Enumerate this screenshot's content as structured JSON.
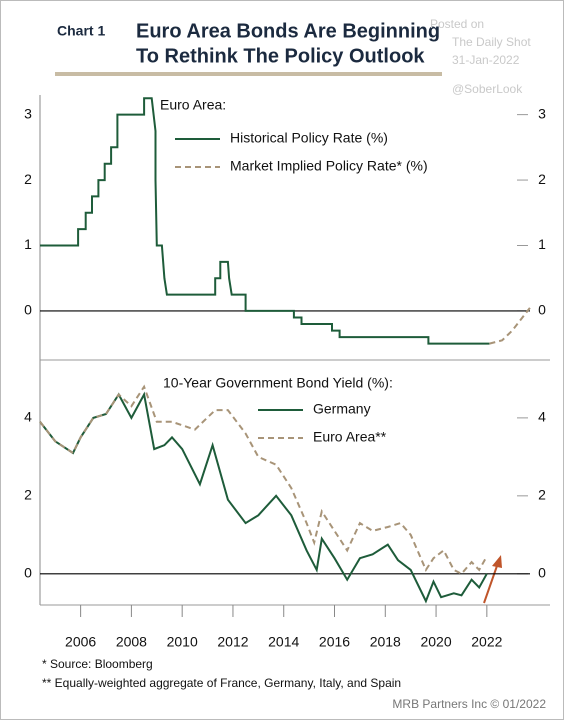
{
  "header": {
    "chart_label": "Chart 1",
    "title": [
      "Euro Area Bonds Are Beginning",
      "To Rethink The Policy Outlook"
    ]
  },
  "watermark": [
    "Posted on",
    "The Daily Shot",
    "31-Jan-2022",
    "@SoberLook"
  ],
  "chart_data": [
    {
      "type": "line",
      "title": "Euro Area:",
      "xlim": [
        2004.4,
        2023.7
      ],
      "ylim": [
        -0.75,
        3.3
      ],
      "yticks": [
        0,
        1,
        2,
        3
      ],
      "series": [
        {
          "name": "Historical Policy Rate (%)",
          "color": "#1e5c3a",
          "style": "solid",
          "x": [
            2004.4,
            2005.9,
            2005.9,
            2006.2,
            2006.2,
            2006.45,
            2006.45,
            2006.7,
            2006.7,
            2006.95,
            2006.95,
            2007.2,
            2007.2,
            2007.45,
            2007.45,
            2008.5,
            2008.5,
            2008.8,
            2008.95,
            2008.95,
            2009.0,
            2009.2,
            2009.3,
            2009.4,
            2011.3,
            2011.3,
            2011.5,
            2011.5,
            2011.8,
            2011.85,
            2011.95,
            2012.5,
            2012.5,
            2014.4,
            2014.4,
            2014.7,
            2014.7,
            2015.9,
            2015.9,
            2016.2,
            2016.2,
            2019.7,
            2019.7,
            2022.1
          ],
          "values": [
            1,
            1,
            1.25,
            1.25,
            1.5,
            1.5,
            1.75,
            1.75,
            2,
            2,
            2.25,
            2.25,
            2.5,
            2.5,
            3,
            3,
            3.25,
            3.25,
            2.75,
            2,
            1,
            1,
            0.5,
            0.25,
            0.25,
            0.5,
            0.5,
            0.75,
            0.75,
            0.5,
            0.25,
            0.25,
            0,
            0,
            -0.1,
            -0.1,
            -0.2,
            -0.2,
            -0.3,
            -0.3,
            -0.4,
            -0.4,
            -0.5,
            -0.5
          ]
        },
        {
          "name": "Market Implied Policy Rate* (%)",
          "color": "#a89478",
          "style": "dashed",
          "x": [
            2022.1,
            2022.6,
            2023.0,
            2023.4,
            2023.7
          ],
          "values": [
            -0.5,
            -0.45,
            -0.3,
            -0.1,
            0.05
          ]
        }
      ]
    },
    {
      "type": "line",
      "title": "10-Year Government Bond Yield (%):",
      "xlim": [
        2004.4,
        2023.7
      ],
      "ylim": [
        -0.8,
        5.1
      ],
      "yticks": [
        0,
        2,
        4
      ],
      "xticks": [
        2006,
        2008,
        2010,
        2012,
        2014,
        2016,
        2018,
        2020,
        2022
      ],
      "series": [
        {
          "name": "Germany",
          "color": "#1e5c3a",
          "style": "solid",
          "x": [
            2004.4,
            2005,
            2005.7,
            2006,
            2006.5,
            2007,
            2007.5,
            2008,
            2008.5,
            2008.9,
            2009.3,
            2009.6,
            2010,
            2010.7,
            2011.2,
            2011.8,
            2012.5,
            2013,
            2013.7,
            2014.3,
            2014.9,
            2015.3,
            2015.5,
            2016,
            2016.5,
            2017,
            2017.5,
            2018.1,
            2018.5,
            2019,
            2019.6,
            2019.9,
            2020.2,
            2020.7,
            2021,
            2021.4,
            2021.7,
            2022
          ],
          "values": [
            3.9,
            3.4,
            3.1,
            3.5,
            4.0,
            4.1,
            4.6,
            4.0,
            4.6,
            3.2,
            3.3,
            3.5,
            3.2,
            2.3,
            3.3,
            1.9,
            1.3,
            1.5,
            2.0,
            1.5,
            0.6,
            0.1,
            0.9,
            0.4,
            -0.15,
            0.4,
            0.5,
            0.75,
            0.35,
            0.1,
            -0.7,
            -0.2,
            -0.6,
            -0.5,
            -0.55,
            -0.15,
            -0.35,
            0.0
          ]
        },
        {
          "name": "Euro Area**",
          "color": "#a89478",
          "style": "dashed",
          "x": [
            2004.4,
            2005,
            2005.7,
            2006,
            2006.5,
            2007,
            2007.5,
            2008,
            2008.5,
            2009,
            2009.6,
            2010.5,
            2011.3,
            2011.8,
            2012.5,
            2013,
            2013.7,
            2014.3,
            2014.9,
            2015.2,
            2015.5,
            2016,
            2016.5,
            2017,
            2017.5,
            2018.1,
            2018.6,
            2019,
            2019.6,
            2019.9,
            2020.3,
            2020.7,
            2021,
            2021.4,
            2021.7,
            2022
          ],
          "values": [
            3.9,
            3.4,
            3.1,
            3.5,
            4.0,
            4.1,
            4.6,
            4.3,
            4.8,
            3.9,
            3.9,
            3.7,
            4.2,
            4.2,
            3.6,
            3.0,
            2.8,
            2.2,
            1.3,
            0.8,
            1.6,
            1.1,
            0.6,
            1.3,
            1.1,
            1.2,
            1.3,
            1.0,
            0.1,
            0.4,
            0.6,
            0.1,
            0.0,
            0.3,
            0.1,
            0.45
          ]
        }
      ]
    }
  ],
  "footnotes": [
    "*  Source: Bloomberg",
    "** Equally-weighted aggregate of France, Germany, Italy, and Spain"
  ],
  "credit": "MRB Partners Inc © 01/2022"
}
